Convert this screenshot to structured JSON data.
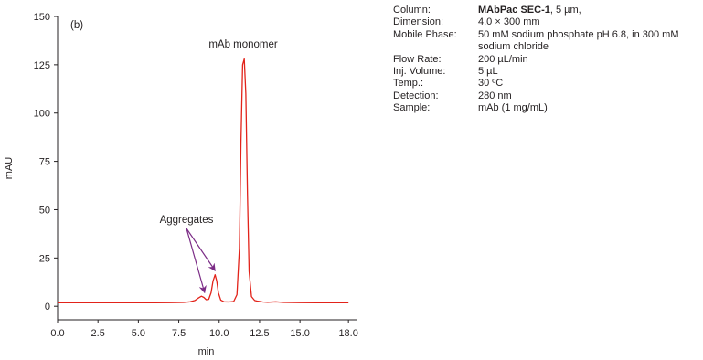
{
  "chart_data": {
    "type": "line",
    "panel_label": "(b)",
    "xlabel": "min",
    "ylabel": "mAU",
    "xlim": [
      0,
      18.5
    ],
    "ylim": [
      -7,
      150
    ],
    "x_ticks": [
      0.0,
      2.5,
      5.0,
      7.5,
      10.0,
      12.5,
      15.0,
      18.0
    ],
    "x_tick_labels": [
      "0.0",
      "2.5",
      "5.0",
      "7.5",
      "10.0",
      "12.5",
      "15.0",
      "18.0"
    ],
    "y_ticks": [
      0,
      25,
      50,
      75,
      100,
      125,
      150
    ],
    "y_tick_labels": [
      "0",
      "25",
      "50",
      "75",
      "100",
      "125",
      "150"
    ],
    "series": [
      {
        "color": "#e2231a",
        "x": [
          0,
          1,
          2,
          3,
          4,
          5,
          6,
          7,
          7.8,
          8.2,
          8.5,
          8.7,
          8.9,
          9.05,
          9.2,
          9.35,
          9.5,
          9.62,
          9.75,
          9.85,
          9.95,
          10.1,
          10.3,
          10.6,
          10.9,
          11.1,
          11.25,
          11.35,
          11.45,
          11.55,
          11.65,
          11.75,
          11.85,
          12.0,
          12.2,
          12.4,
          12.7,
          13.0,
          13.5,
          14.0,
          15,
          16,
          17,
          18
        ],
        "y": [
          1.8,
          1.8,
          1.8,
          1.8,
          1.8,
          1.8,
          1.8,
          1.9,
          2.0,
          2.3,
          3.0,
          4.2,
          5.2,
          4.6,
          3.4,
          3.6,
          7,
          13,
          16.3,
          13,
          7,
          3.2,
          2.3,
          2.2,
          2.5,
          6,
          30,
          85,
          125,
          128,
          110,
          58,
          18,
          5,
          3.0,
          2.6,
          2.2,
          2.1,
          2.3,
          2.0,
          1.9,
          1.8,
          1.8,
          1.8
        ]
      }
    ],
    "annotations": [
      {
        "text": "mAb monomer",
        "x": 11.6,
        "y": 131
      },
      {
        "text": "Aggregates",
        "arrow_targets": [
          [
            9.1,
            5.6
          ],
          [
            9.75,
            17
          ]
        ],
        "arrow_color": "#7b2c86"
      }
    ]
  },
  "conditions": [
    {
      "label": "Column:",
      "value_bold": "MAbPac SEC-1",
      "value": ", 5 µm,"
    },
    {
      "label": "Dimension:",
      "value_bold": "",
      "value": "4.0 × 300 mm"
    },
    {
      "label": "Mobile Phase:",
      "value_bold": "",
      "value": "50 mM sodium phosphate pH 6.8, in 300 mM sodium chloride"
    },
    {
      "label": "Flow Rate:",
      "value_bold": "",
      "value": "200 µL/min"
    },
    {
      "label": "Inj. Volume:",
      "value_bold": "",
      "value": "5 µL"
    },
    {
      "label": "Temp.:",
      "value_bold": "",
      "value": "30 ºC"
    },
    {
      "label": "Detection:",
      "value_bold": "",
      "value": "280 nm"
    },
    {
      "label": "Sample:",
      "value_bold": "",
      "value": "mAb (1 mg/mL)"
    }
  ]
}
